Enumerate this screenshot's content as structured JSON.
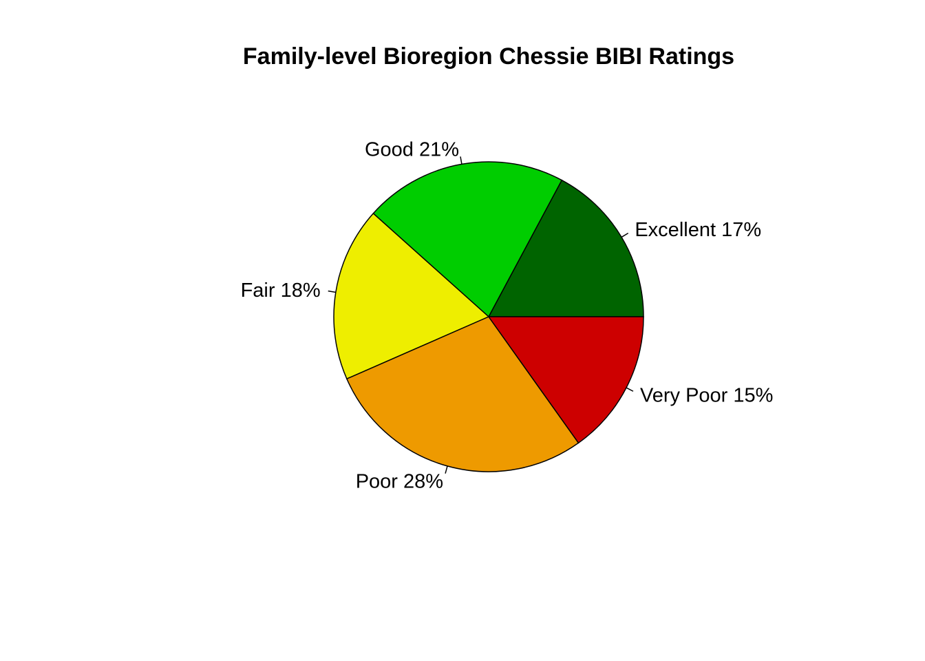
{
  "chart_data": {
    "type": "pie",
    "title": "Family-level Bioregion Chessie BIBI Ratings",
    "start_angle_deg": 0,
    "direction": "counterclockwise",
    "slices": [
      {
        "label": "Excellent",
        "value": 17,
        "percent_label": "Excellent 17%",
        "color": "#006400"
      },
      {
        "label": "Good",
        "value": 21,
        "percent_label": "Good 21%",
        "color": "#00CD00"
      },
      {
        "label": "Fair",
        "value": 18,
        "percent_label": "Fair 18%",
        "color": "#EEEE00"
      },
      {
        "label": "Poor",
        "value": 28,
        "percent_label": "Poor 28%",
        "color": "#EE9A00"
      },
      {
        "label": "Very Poor",
        "value": 15,
        "percent_label": "Very Poor 15%",
        "color": "#CD0000"
      }
    ]
  }
}
